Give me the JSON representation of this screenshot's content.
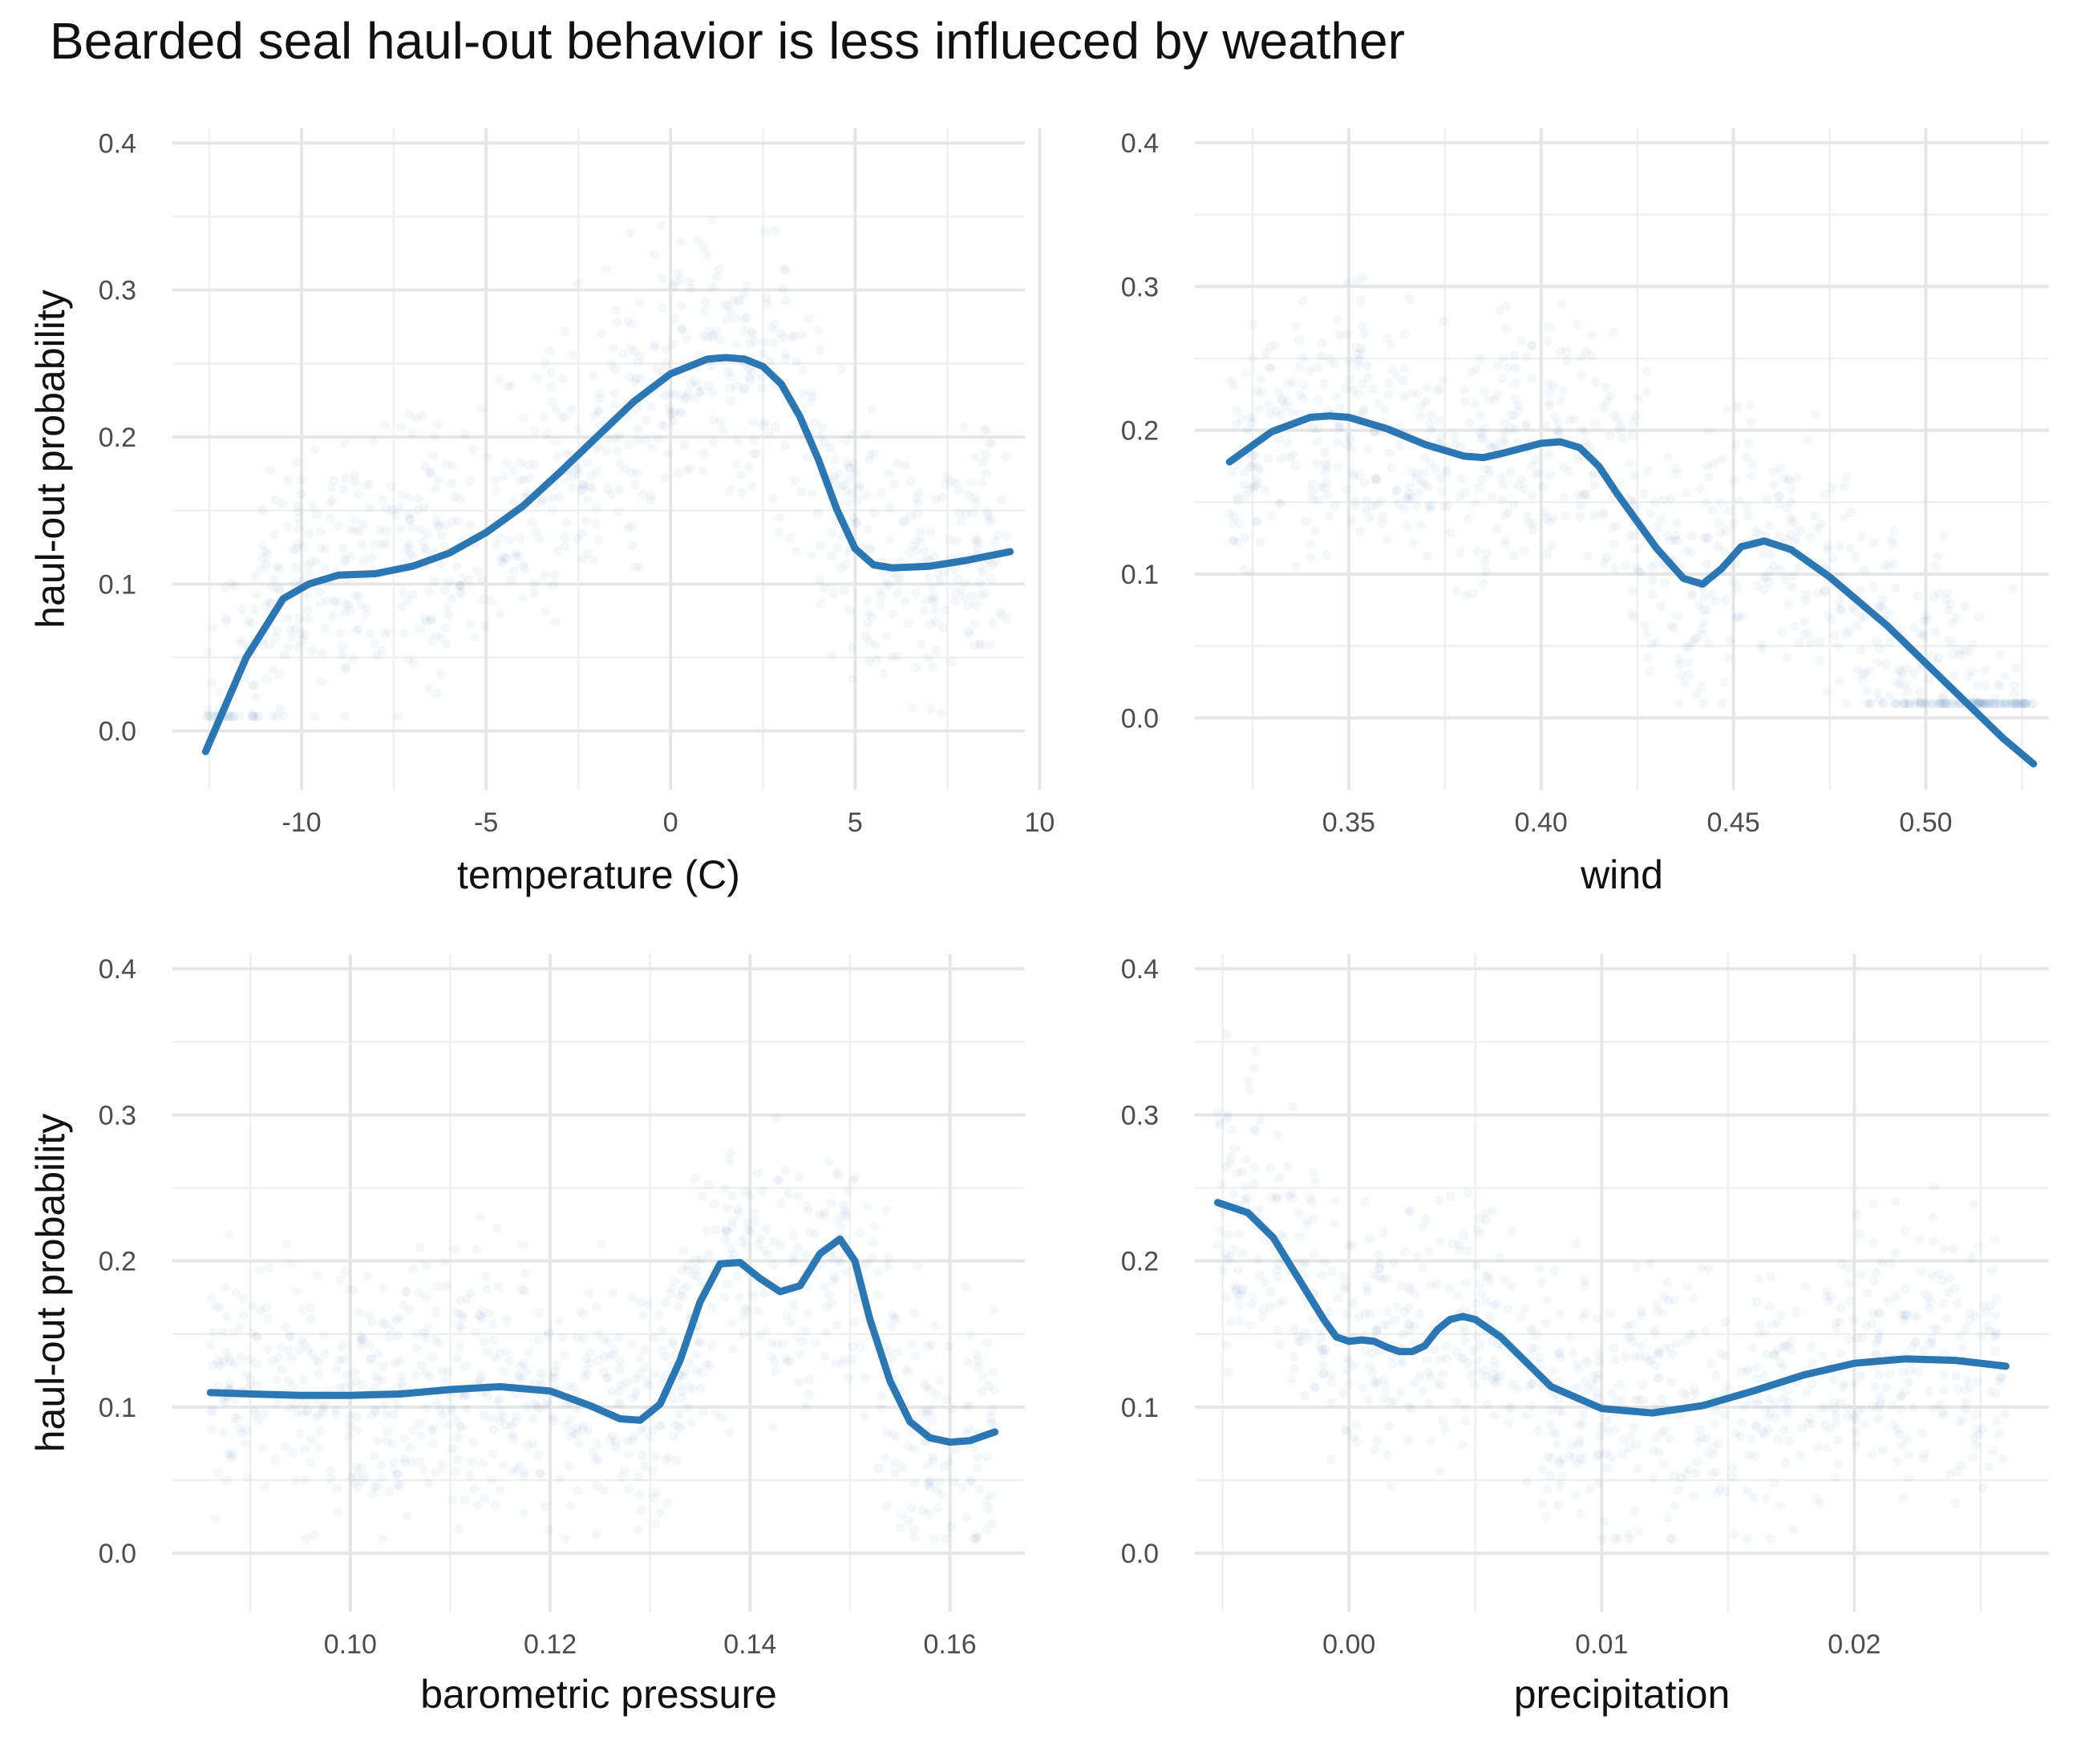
{
  "title": "Bearded seal haul-out behavior is less influeced by weather",
  "colors": {
    "line": "#2a77b4",
    "points": "#3b78b8",
    "grid": "#e6e6e6"
  },
  "chart_data": [
    {
      "type": "line",
      "xlabel": "temperature (C)",
      "ylabel": "haul-out probability",
      "xlim": [
        -13.5,
        9.6
      ],
      "ylim": [
        -0.04,
        0.41
      ],
      "xticks": [
        -10,
        -5,
        0,
        5,
        10
      ],
      "xtick_labels": [
        "-10",
        "-5",
        "0",
        "5",
        "10"
      ],
      "yticks": [
        0.0,
        0.1,
        0.2,
        0.3,
        0.4
      ],
      "ytick_labels": [
        "0.0",
        "0.1",
        "0.2",
        "0.3",
        "0.4"
      ],
      "grid": true,
      "x": [
        -12.6,
        -11.5,
        -10.5,
        -9.8,
        -9,
        -8,
        -7,
        -6,
        -5,
        -4,
        -3,
        -2,
        -1,
        0,
        1,
        1.5,
        2,
        2.5,
        3,
        3.5,
        4,
        4.5,
        5,
        5.5,
        6,
        7,
        8,
        9.2
      ],
      "y": [
        -0.014,
        0.05,
        0.09,
        0.1,
        0.106,
        0.107,
        0.112,
        0.121,
        0.135,
        0.153,
        0.176,
        0.2,
        0.224,
        0.243,
        0.253,
        0.254,
        0.253,
        0.248,
        0.236,
        0.214,
        0.185,
        0.151,
        0.124,
        0.113,
        0.111,
        0.112,
        0.116,
        0.122
      ]
    },
    {
      "type": "line",
      "xlabel": "wind",
      "ylabel": "",
      "xlim": [
        0.31,
        0.532
      ],
      "ylim": [
        -0.05,
        0.41
      ],
      "xticks": [
        0.35,
        0.4,
        0.45,
        0.5
      ],
      "xtick_labels": [
        "0.35",
        "0.40",
        "0.45",
        "0.50"
      ],
      "yticks": [
        0.0,
        0.1,
        0.2,
        0.3,
        0.4
      ],
      "ytick_labels": [
        "0.0",
        "0.1",
        "0.2",
        "0.3",
        "0.4"
      ],
      "grid": true,
      "x": [
        0.319,
        0.33,
        0.34,
        0.345,
        0.35,
        0.36,
        0.37,
        0.38,
        0.385,
        0.39,
        0.4,
        0.405,
        0.41,
        0.415,
        0.42,
        0.43,
        0.437,
        0.442,
        0.447,
        0.452,
        0.458,
        0.465,
        0.475,
        0.49,
        0.505,
        0.52,
        0.528
      ],
      "y": [
        0.178,
        0.199,
        0.209,
        0.21,
        0.209,
        0.201,
        0.19,
        0.182,
        0.181,
        0.184,
        0.191,
        0.192,
        0.188,
        0.175,
        0.155,
        0.118,
        0.097,
        0.093,
        0.104,
        0.119,
        0.123,
        0.117,
        0.098,
        0.064,
        0.025,
        -0.014,
        -0.032
      ]
    },
    {
      "type": "line",
      "xlabel": "barometric pressure",
      "ylabel": "haul-out probability",
      "xlim": [
        0.0822,
        0.1675
      ],
      "ylim": [
        -0.04,
        0.41
      ],
      "xticks": [
        0.1,
        0.12,
        0.14,
        0.16
      ],
      "xtick_labels": [
        "0.10",
        "0.12",
        "0.14",
        "0.16"
      ],
      "yticks": [
        0.0,
        0.1,
        0.2,
        0.3,
        0.4
      ],
      "ytick_labels": [
        "0.0",
        "0.1",
        "0.2",
        "0.3",
        "0.4"
      ],
      "grid": true,
      "x": [
        0.086,
        0.09,
        0.095,
        0.1,
        0.105,
        0.11,
        0.115,
        0.12,
        0.124,
        0.127,
        0.129,
        0.131,
        0.133,
        0.135,
        0.137,
        0.139,
        0.141,
        0.143,
        0.145,
        0.147,
        0.149,
        0.1505,
        0.152,
        0.154,
        0.156,
        0.158,
        0.16,
        0.162,
        0.1645
      ],
      "y": [
        0.11,
        0.109,
        0.108,
        0.108,
        0.109,
        0.112,
        0.114,
        0.111,
        0.101,
        0.092,
        0.091,
        0.102,
        0.132,
        0.172,
        0.198,
        0.199,
        0.188,
        0.179,
        0.183,
        0.205,
        0.215,
        0.2,
        0.16,
        0.118,
        0.09,
        0.079,
        0.076,
        0.077,
        0.083
      ]
    },
    {
      "type": "line",
      "xlabel": "precipitation",
      "ylabel": "",
      "xlim": [
        -0.0061,
        0.0277
      ],
      "ylim": [
        -0.04,
        0.41
      ],
      "xticks": [
        0.0,
        0.01,
        0.02
      ],
      "xtick_labels": [
        "0.00",
        "0.01",
        "0.02"
      ],
      "yticks": [
        0.0,
        0.1,
        0.2,
        0.3,
        0.4
      ],
      "ytick_labels": [
        "0.0",
        "0.1",
        "0.2",
        "0.3",
        "0.4"
      ],
      "grid": true,
      "x": [
        -0.0052,
        -0.004,
        -0.003,
        -0.002,
        -0.001,
        -0.0005,
        0.0,
        0.0005,
        0.001,
        0.0015,
        0.002,
        0.0025,
        0.003,
        0.0035,
        0.004,
        0.0045,
        0.005,
        0.006,
        0.007,
        0.008,
        0.01,
        0.012,
        0.014,
        0.016,
        0.018,
        0.02,
        0.022,
        0.024,
        0.026
      ],
      "y": [
        0.24,
        0.233,
        0.216,
        0.188,
        0.16,
        0.148,
        0.145,
        0.146,
        0.145,
        0.141,
        0.138,
        0.138,
        0.142,
        0.153,
        0.16,
        0.162,
        0.16,
        0.148,
        0.131,
        0.114,
        0.099,
        0.096,
        0.101,
        0.111,
        0.122,
        0.13,
        0.133,
        0.132,
        0.128
      ]
    }
  ]
}
